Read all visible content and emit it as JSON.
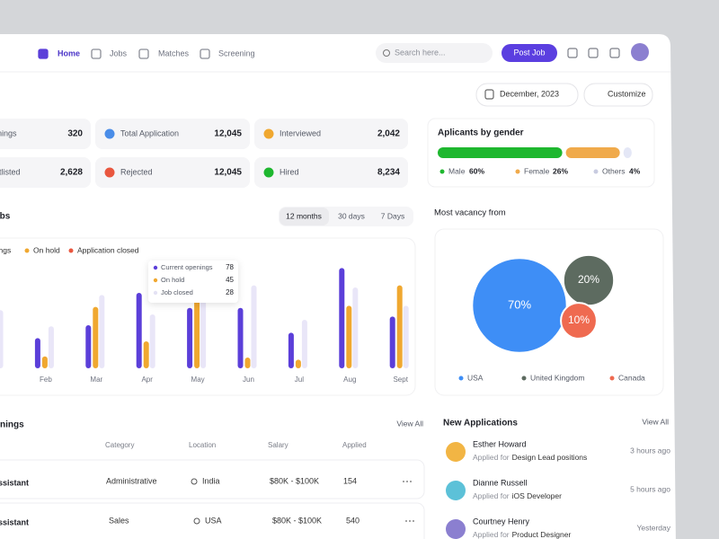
{
  "nav": {
    "items": [
      "Home",
      "Jobs",
      "Matches",
      "Screening"
    ],
    "search_placeholder": "Search here...",
    "post_job": "Post Job"
  },
  "toolbar": {
    "date": "December, 2023",
    "customize": "Customize"
  },
  "stats": [
    {
      "label": "Openings",
      "value": "320"
    },
    {
      "label": "Total Application",
      "value": "12,045"
    },
    {
      "label": "Interviewed",
      "value": "2,042"
    },
    {
      "label": "Shortlisted",
      "value": "2,628"
    },
    {
      "label": "Rejected",
      "value": "12,045"
    },
    {
      "label": "Hired",
      "value": "8,234"
    }
  ],
  "gender_chart": {
    "type": "stacked-bar",
    "title": "Aplicants by gender",
    "categories": [
      "Male",
      "Female",
      "Others"
    ],
    "values": [
      60,
      26,
      4
    ],
    "value_labels": [
      "60%",
      "26%",
      "4%"
    ],
    "colors": [
      "#1eb72f",
      "#f0aa4b",
      "#e4e7f6"
    ]
  },
  "jobs_chart": {
    "type": "bar",
    "title": "Jobs",
    "ranges": [
      "12 months",
      "30 days",
      "7 Days"
    ],
    "categories": [
      null,
      "Feb",
      "Mar",
      "Apr",
      "May",
      "Jun",
      "Jul",
      "Aug",
      "Sept"
    ],
    "ylim": [
      0,
      100
    ],
    "series": [
      {
        "name": "Current openings",
        "color": "#5b3fd9",
        "legend_color": "#5b3fd9",
        "values": [
          50,
          28,
          40,
          70,
          56,
          56,
          33,
          93,
          48
        ]
      },
      {
        "name": "On hold",
        "color": "#f0a830",
        "legend_color": "#f0a830",
        "values": [
          30,
          11,
          57,
          25,
          65,
          10,
          8,
          58,
          77
        ]
      },
      {
        "name": "Application closed",
        "color": "#e9e6f8",
        "legend_color": "#e9573f",
        "values": [
          54,
          39,
          68,
          50,
          75,
          77,
          45,
          75,
          58
        ]
      }
    ],
    "tooltip": {
      "rows": [
        {
          "label": "Current openings",
          "value": 78,
          "color": "#5b3fd9"
        },
        {
          "label": "On hold",
          "value": 45,
          "color": "#f0a830"
        },
        {
          "label": "Job closed",
          "value": 28,
          "color": "#e4e2f4"
        }
      ]
    }
  },
  "vacancy_chart": {
    "type": "bubble",
    "title": "Most vacancy from",
    "categories": [
      "USA",
      "United Kingdom",
      "Canada"
    ],
    "values": [
      70,
      20,
      10
    ],
    "value_labels": [
      "70%",
      "20%",
      "10%"
    ],
    "colors": [
      "#3e8ef6",
      "#5d6b60",
      "#ef6a50"
    ]
  },
  "job_openings": {
    "title": "Job Openings",
    "view_all": "View All",
    "columns": [
      "Category",
      "Location",
      "Salary",
      "Applied"
    ],
    "rows": [
      [
        "Assistant",
        "Administrative",
        "India",
        "$80K - $100K",
        "154"
      ],
      [
        "Assistant",
        "Sales",
        "USA",
        "$80K - $100K",
        "540"
      ]
    ]
  },
  "new_applications": {
    "title": "New Applications",
    "view_all": "View All",
    "items": [
      {
        "name": "Esther Howard",
        "prefix": "Applied for",
        "role": "Design Lead positions",
        "time": "3 hours ago"
      },
      {
        "name": "Dianne Russell",
        "prefix": "Applied for",
        "role": "iOS Developer",
        "time": "5 hours ago"
      },
      {
        "name": "Courtney Henry",
        "prefix": "Applied for",
        "role": "Product Designer",
        "time": "Yesterday"
      }
    ]
  }
}
